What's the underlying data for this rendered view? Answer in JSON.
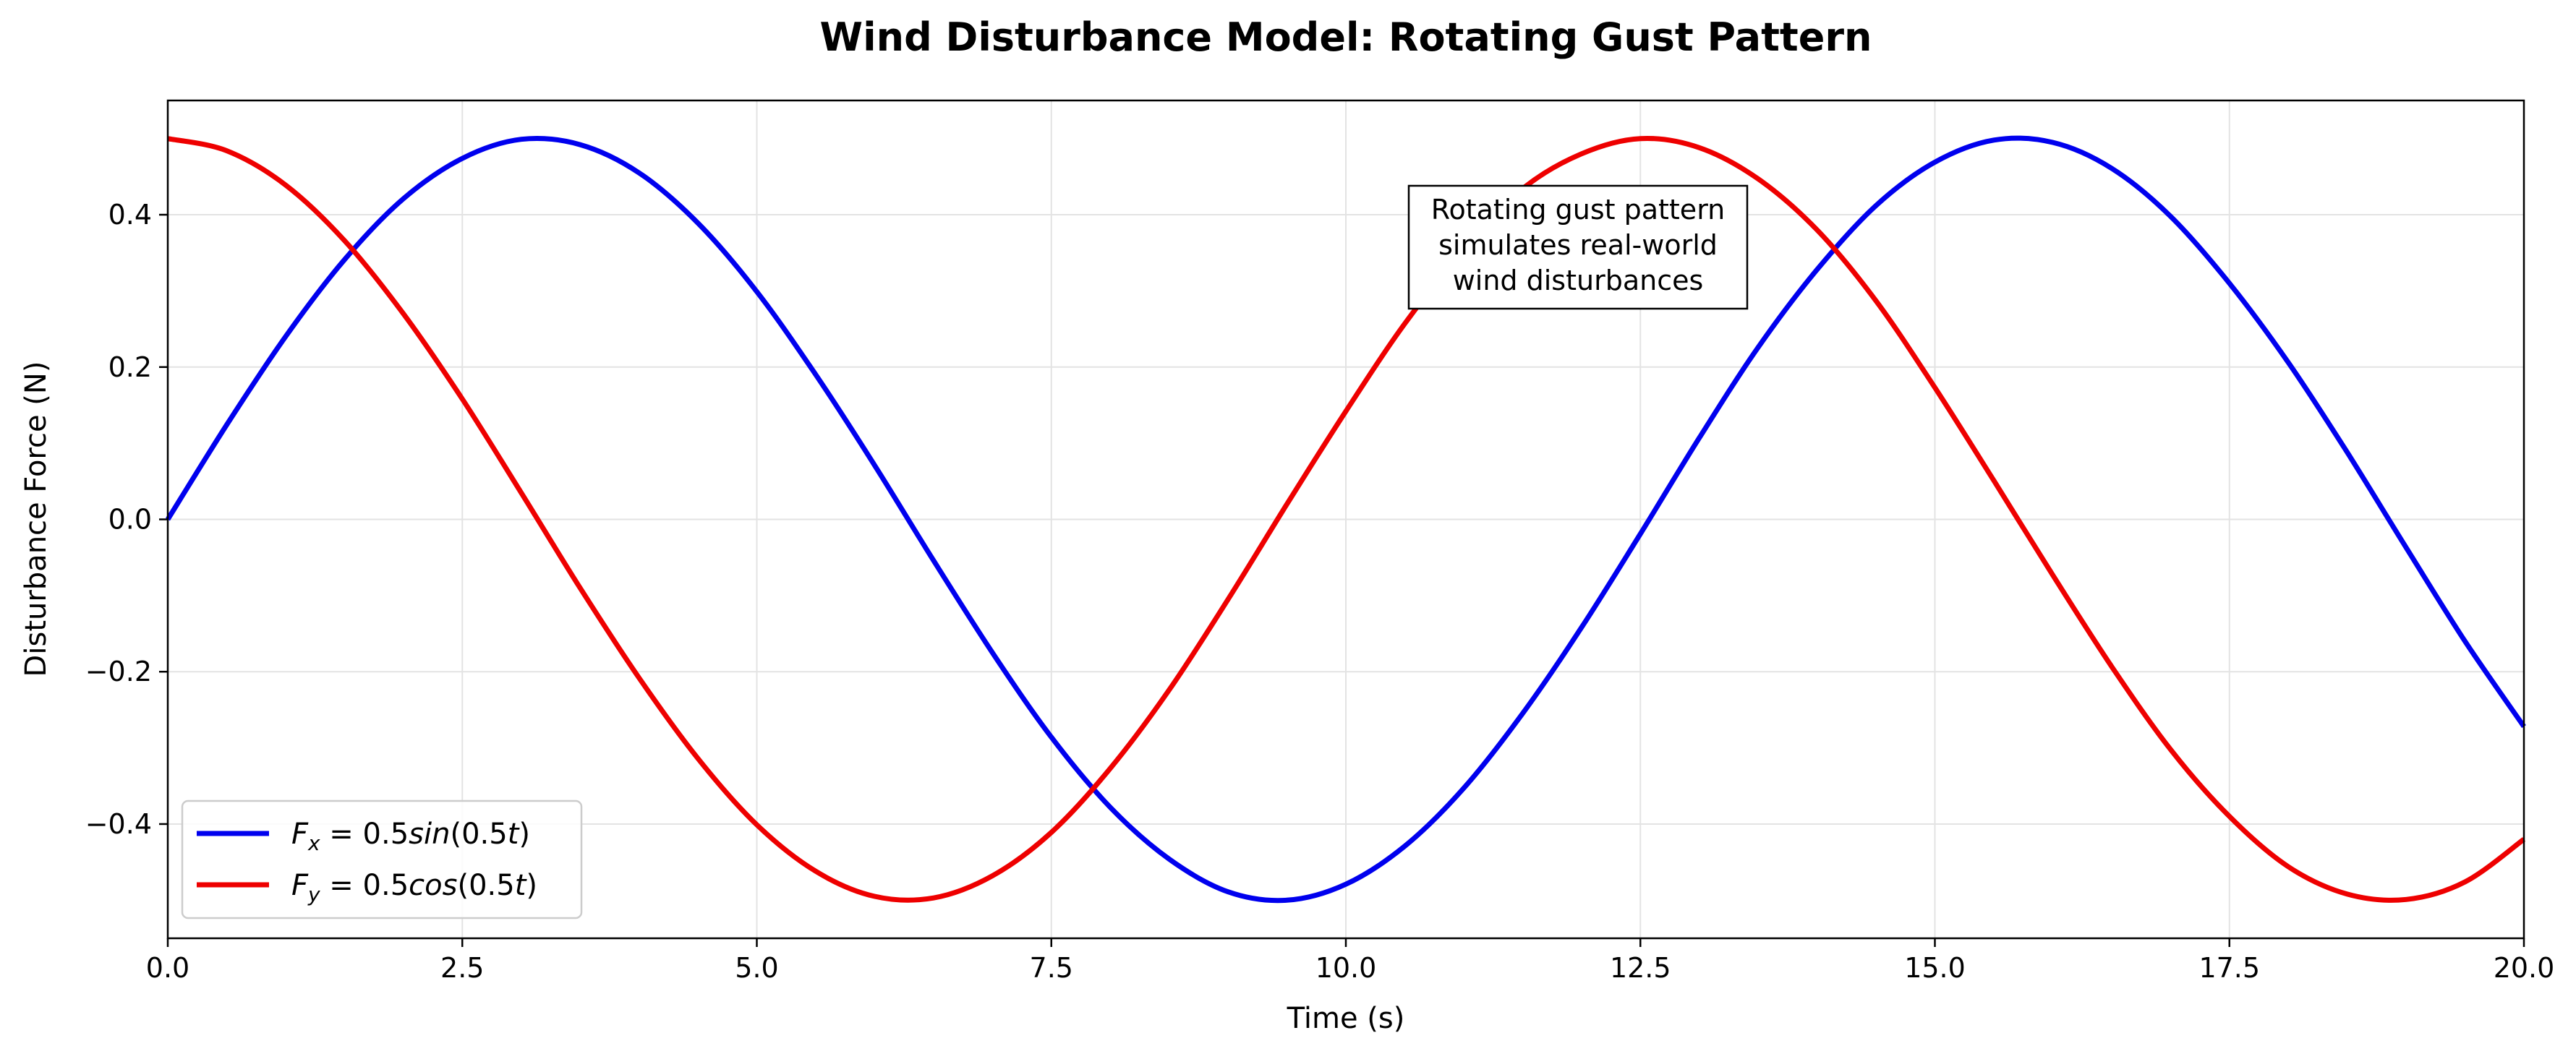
{
  "chart_data": {
    "type": "line",
    "title": "Wind Disturbance Model: Rotating Gust Pattern",
    "xlabel": "Time (s)",
    "ylabel": "Disturbance Force (N)",
    "xlim": [
      0,
      20
    ],
    "ylim": [
      -0.55,
      0.55
    ],
    "x_ticks": [
      0.0,
      2.5,
      5.0,
      7.5,
      10.0,
      12.5,
      15.0,
      17.5,
      20.0
    ],
    "x_tick_labels": [
      "0.0",
      "2.5",
      "5.0",
      "7.5",
      "10.0",
      "12.5",
      "15.0",
      "17.5",
      "20.0"
    ],
    "y_ticks": [
      -0.4,
      -0.2,
      0.0,
      0.2,
      0.4
    ],
    "y_tick_labels": [
      "−0.4",
      "−0.2",
      "0.0",
      "0.2",
      "0.4"
    ],
    "grid": true,
    "legend_position": "lower-left",
    "series": [
      {
        "name": "F_x = 0.5sin(0.5t)",
        "color": "#0000ee",
        "x": [
          0,
          0.5,
          1,
          1.5,
          2,
          2.5,
          3,
          3.5,
          4,
          4.5,
          5,
          5.5,
          6,
          6.5,
          7,
          7.5,
          8,
          8.5,
          9,
          9.5,
          10,
          10.5,
          11,
          11.5,
          12,
          12.5,
          13,
          13.5,
          14,
          14.5,
          15,
          15.5,
          16,
          16.5,
          17,
          17.5,
          18,
          18.5,
          19,
          19.5,
          20
        ],
        "y": [
          0,
          0.124,
          0.24,
          0.341,
          0.421,
          0.474,
          0.499,
          0.492,
          0.455,
          0.389,
          0.299,
          0.19,
          0.071,
          -0.054,
          -0.175,
          -0.286,
          -0.378,
          -0.446,
          -0.489,
          -0.5,
          -0.479,
          -0.429,
          -0.353,
          -0.255,
          -0.142,
          -0.019,
          0.107,
          0.226,
          0.328,
          0.412,
          0.469,
          0.498,
          0.495,
          0.461,
          0.398,
          0.31,
          0.206,
          0.088,
          -0.037,
          -0.16,
          -0.272
        ]
      },
      {
        "name": "F_y = 0.5cos(0.5t)",
        "color": "#ee0000",
        "x": [
          0,
          0.5,
          1,
          1.5,
          2,
          2.5,
          3,
          3.5,
          4,
          4.5,
          5,
          5.5,
          6,
          6.5,
          7,
          7.5,
          8,
          8.5,
          9,
          9.5,
          10,
          10.5,
          11,
          11.5,
          12,
          12.5,
          13,
          13.5,
          14,
          14.5,
          15,
          15.5,
          16,
          16.5,
          17,
          17.5,
          18,
          18.5,
          19,
          19.5,
          20
        ],
        "y": [
          0.5,
          0.484,
          0.439,
          0.366,
          0.27,
          0.158,
          0.035,
          -0.09,
          -0.208,
          -0.314,
          -0.401,
          -0.462,
          -0.495,
          -0.497,
          -0.468,
          -0.411,
          -0.327,
          -0.224,
          -0.105,
          0.02,
          0.142,
          0.257,
          0.354,
          0.434,
          0.48,
          0.5,
          0.488,
          0.447,
          0.38,
          0.287,
          0.173,
          0.051,
          -0.073,
          -0.193,
          -0.302,
          -0.39,
          -0.456,
          -0.492,
          -0.499,
          -0.476,
          -0.42
        ]
      }
    ],
    "legend": [
      {
        "main": "F",
        "sub": "x",
        "rest": " = 0.5",
        "fn": "sin",
        "arg_open": "(0.5",
        "arg_var": "t",
        "arg_close": ")"
      },
      {
        "main": "F",
        "sub": "y",
        "rest": " = 0.5",
        "fn": "cos",
        "arg_open": "(0.5",
        "arg_var": "t",
        "arg_close": ")"
      }
    ],
    "annotation": {
      "lines": [
        "Rotating gust pattern",
        "simulates real-world",
        "wind disturbances"
      ]
    }
  }
}
